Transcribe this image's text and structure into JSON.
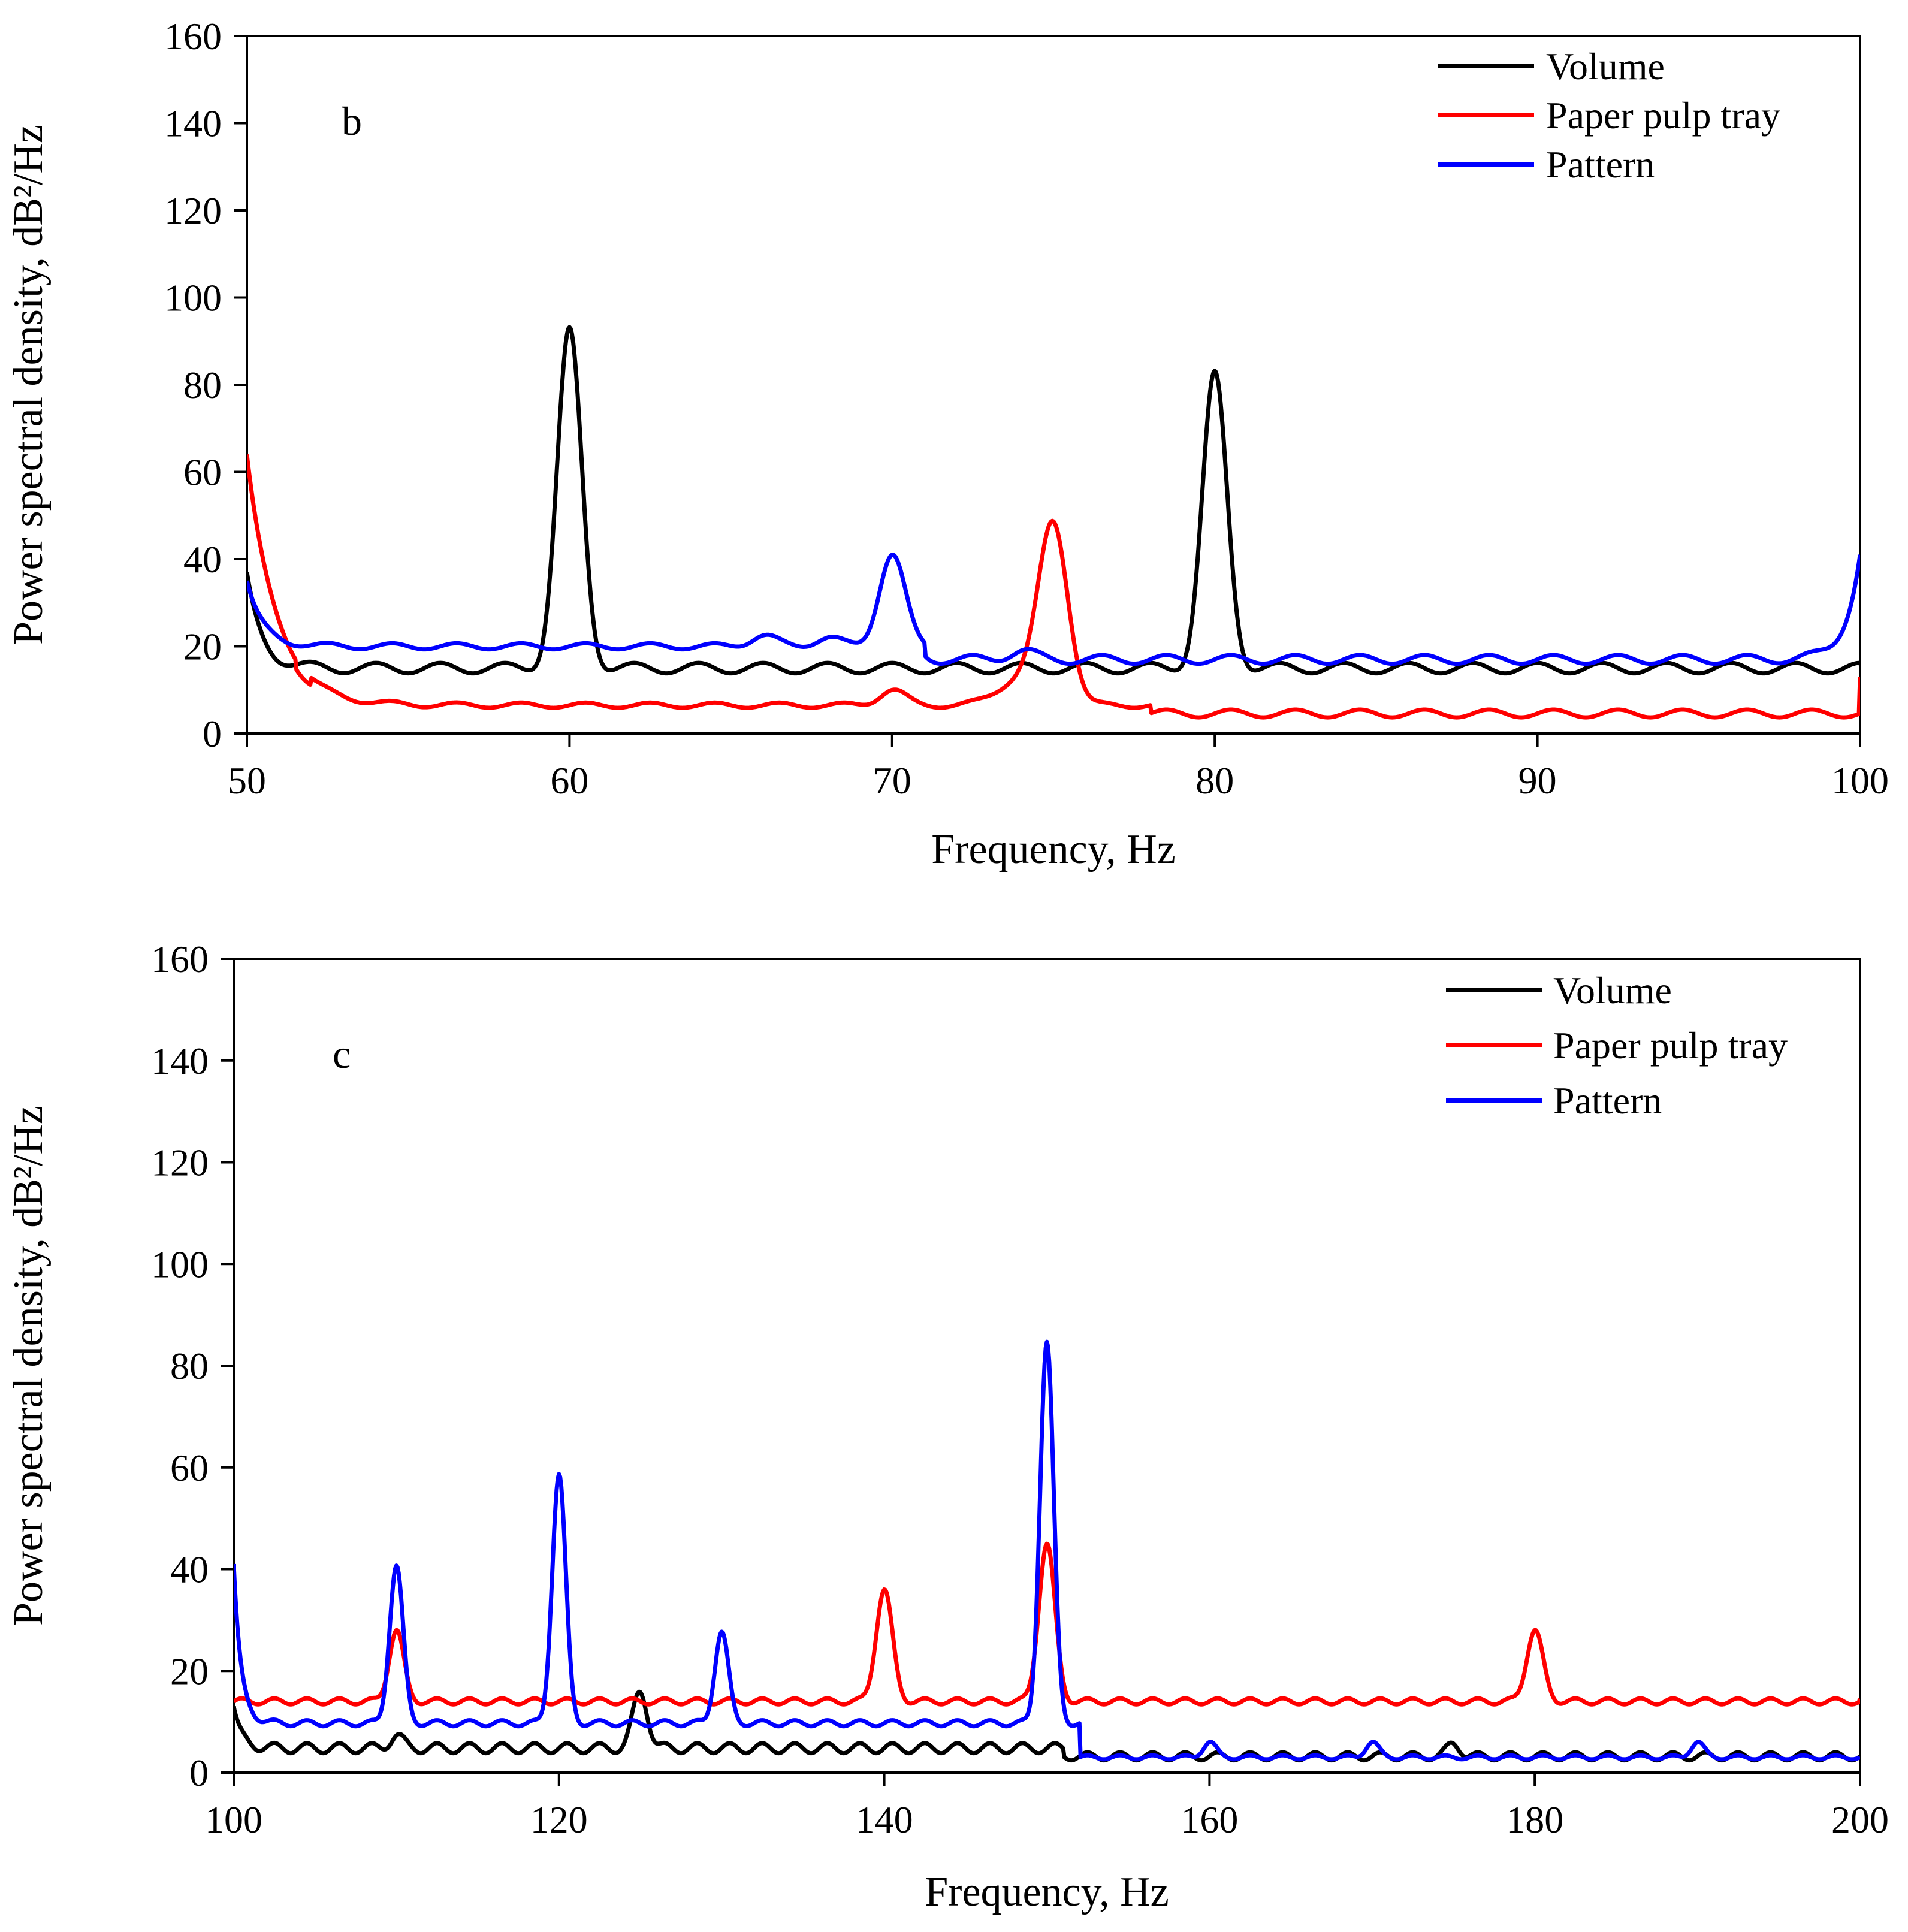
{
  "chart_data": [
    {
      "type": "line",
      "panel_label": "b",
      "xlabel": "Frequency, Hz",
      "ylabel": "Power spectral density, dB²/Hz",
      "xlim": [
        50,
        100
      ],
      "ylim": [
        0,
        160
      ],
      "xticks": [
        50,
        60,
        70,
        80,
        90,
        100
      ],
      "yticks": [
        0,
        20,
        40,
        60,
        80,
        100,
        120,
        140,
        160
      ],
      "legend_position": "top-right",
      "series": [
        {
          "name": "Volume",
          "color": "#000000",
          "baseline": 15,
          "ripple": 1.2,
          "ripple_period": 2,
          "ripple_phase": 0.5,
          "start_value": 37,
          "start_decay": 0.45,
          "peaks": [
            [
              60,
              77,
              0.38
            ],
            [
              80,
              67,
              0.38
            ]
          ],
          "end_value": 16
        },
        {
          "name": "Paper pulp tray",
          "color": "#ff0000",
          "segments": [
            [
              50,
              51.5,
              7,
              0.8
            ],
            [
              52,
              78,
              6.5,
              0.6
            ],
            [
              78,
              100,
              4.6,
              0.9
            ]
          ],
          "start_value": 64,
          "start_decay": 0.9,
          "peaks": [
            [
              70,
              3.5,
              0.4
            ],
            [
              75,
              40,
              0.45
            ],
            [
              74,
              6,
              0.7
            ]
          ],
          "end_value": 13
        },
        {
          "name": "Pattern",
          "color": "#0000ff",
          "segments": [
            [
              50,
              71,
              20,
              0.7
            ],
            [
              71,
              100,
              17,
              1.0
            ]
          ],
          "ripple_period": 2,
          "start_value": 35,
          "start_decay": 0.5,
          "peaks": [
            [
              70,
              21,
              0.4
            ],
            [
              66,
              2.5,
              0.4
            ],
            [
              68,
              2,
              0.4
            ],
            [
              74,
              2,
              0.4
            ]
          ],
          "end_value": 41,
          "end_decay": 0.45
        }
      ]
    },
    {
      "type": "line",
      "panel_label": "c",
      "xlabel": "Frequency, Hz",
      "ylabel": "Power spectral density, dB²/Hz",
      "xlim": [
        100,
        200
      ],
      "ylim": [
        0,
        160
      ],
      "xticks": [
        100,
        120,
        140,
        160,
        180,
        200
      ],
      "yticks": [
        0,
        20,
        40,
        60,
        80,
        100,
        120,
        140,
        160
      ],
      "legend_position": "top-right",
      "series": [
        {
          "name": "Volume",
          "color": "#000000",
          "segments": [
            [
              100,
              151,
              4.8,
              1.0
            ],
            [
              151,
              200,
              3.2,
              0.8
            ]
          ],
          "ripple_period": 2,
          "start_value": 13,
          "start_decay": 0.5,
          "peaks": [
            [
              110,
              2.5,
              0.4
            ],
            [
              125,
              11,
              0.45
            ],
            [
              175,
              2.5,
              0.4
            ]
          ],
          "end_value": 3
        },
        {
          "name": "Paper pulp tray",
          "color": "#ff0000",
          "baseline": 14,
          "ripple": 0.6,
          "ripple_period": 2,
          "ripple_phase": 0,
          "peaks": [
            [
              110,
              14,
              0.45
            ],
            [
              140,
              22,
              0.5
            ],
            [
              150,
              31,
              0.5
            ],
            [
              180,
              14,
              0.5
            ]
          ],
          "end_value": 14.5
        },
        {
          "name": "Pattern",
          "color": "#0000ff",
          "segments": [
            [
              100,
              152,
              9.7,
              0.6
            ],
            [
              152,
              200,
              3,
              0.4
            ]
          ],
          "ripple_period": 2,
          "start_value": 41,
          "start_decay": 0.45,
          "peaks": [
            [
              110,
              31,
              0.42
            ],
            [
              120,
              49,
              0.42
            ],
            [
              130,
              18,
              0.42
            ],
            [
              150,
              75,
              0.42
            ],
            [
              160,
              3,
              0.4
            ],
            [
              170,
              3,
              0.4
            ],
            [
              190,
              3,
              0.4
            ]
          ],
          "end_value": 3
        }
      ]
    }
  ]
}
